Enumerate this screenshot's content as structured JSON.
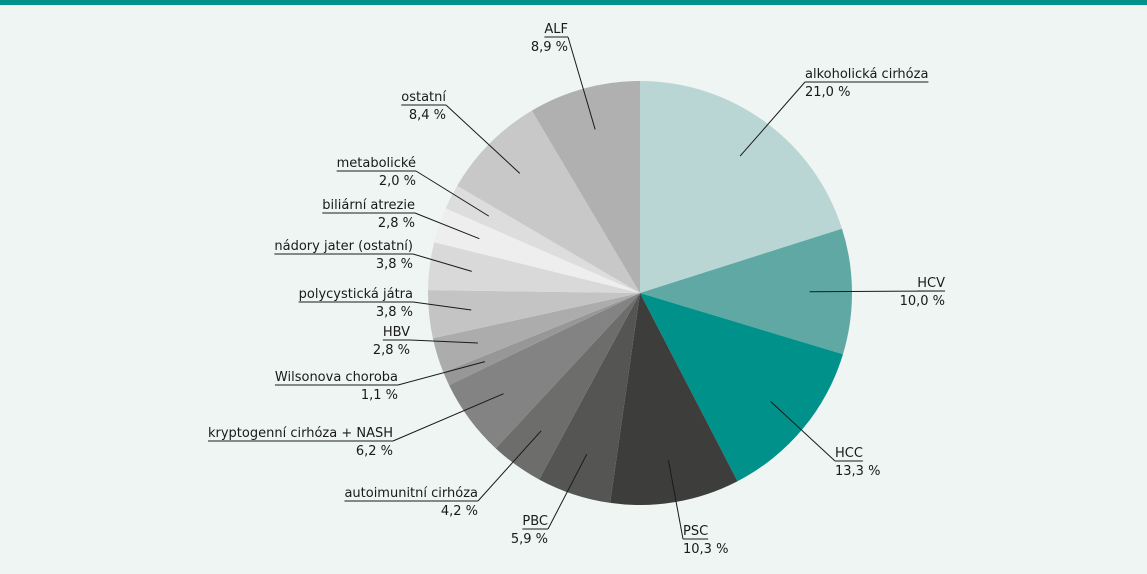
{
  "chart_data": {
    "type": "pie",
    "categories": [
      "alkoholická cirhóza",
      "HCV",
      "HCC",
      "PSC",
      "PBC",
      "autoimunitní cirhóza",
      "kryptogenní cirhóza  + NASH",
      "Wilsonova choroba",
      "HBV",
      "polycystická játra",
      "nádory jater (ostatní)",
      "biliární atrezie",
      "metabolické",
      "ostatní",
      "ALF"
    ],
    "values": [
      21.0,
      10.0,
      13.3,
      10.3,
      5.9,
      4.2,
      6.2,
      1.1,
      2.8,
      3.8,
      3.8,
      2.8,
      2.0,
      8.4,
      8.9
    ],
    "value_labels": [
      "21,0 %",
      "10,0 %",
      "13,3 %",
      "10,3 %",
      "5,9 %",
      "4,2 %",
      "6,2 %",
      "1,1 %",
      "2,8 %",
      "3,8 %",
      "3,8 %",
      "2,8 %",
      "2,0 %",
      "8,4 %",
      "8,9 %"
    ],
    "colors": [
      "#b9d6d4",
      "#5fa8a4",
      "#00918a",
      "#3d3d3b",
      "#555554",
      "#6d6d6c",
      "#838383",
      "#979797",
      "#acacac",
      "#c4c4c4",
      "#d9d9d9",
      "#eeeeee",
      "#dddddd",
      "#c8c8c8",
      "#b0b0b0"
    ]
  }
}
